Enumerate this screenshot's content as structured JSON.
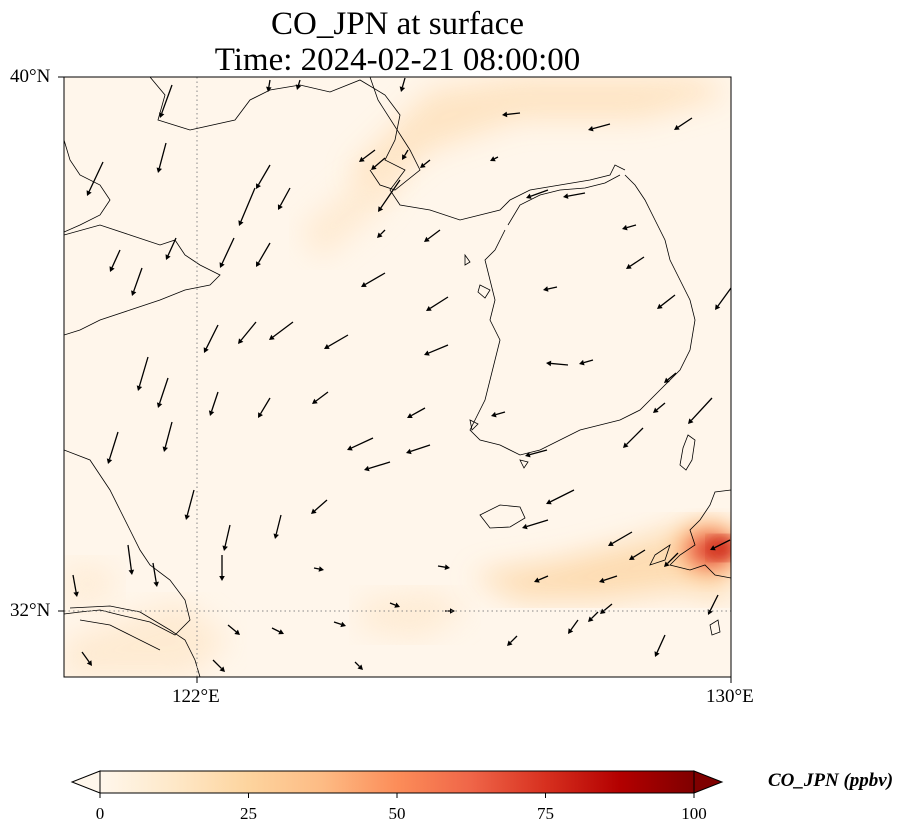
{
  "title": {
    "line1": "CO_JPN at surface",
    "line2": "Time: 2024-02-21 08:00:00"
  },
  "map": {
    "extent": {
      "lon_min": 120.4,
      "lon_max": 130,
      "lat_min": 31.2,
      "lat_max": 40
    },
    "lat_ticks": [
      {
        "value": 40,
        "label": "40°N"
      },
      {
        "value": 32,
        "label": "32°N"
      }
    ],
    "lon_ticks": [
      {
        "value": 122,
        "label": "122°E"
      },
      {
        "value": 130,
        "label": "130°E"
      }
    ],
    "gridlines": {
      "lon": [
        122
      ],
      "lat": [
        32
      ],
      "style": "dotted"
    },
    "field": "CO_JPN",
    "max_region": "near 129.8°E, 32.8°N (Nagasaki area)",
    "wind_vectors": "northwesterly to northerly over the Yellow Sea and Korea"
  },
  "colorbar": {
    "label": "CO_JPN (ppbv)",
    "colormap": "OrRd",
    "min": 0,
    "max": 100,
    "ticks": [
      0,
      25,
      50,
      75,
      100
    ],
    "extend": "both",
    "colors": [
      "#fff7ec",
      "#fee8c8",
      "#fdd49e",
      "#fdbb84",
      "#fc8d59",
      "#ef6548",
      "#d7301f",
      "#b30000",
      "#7f0000"
    ]
  }
}
